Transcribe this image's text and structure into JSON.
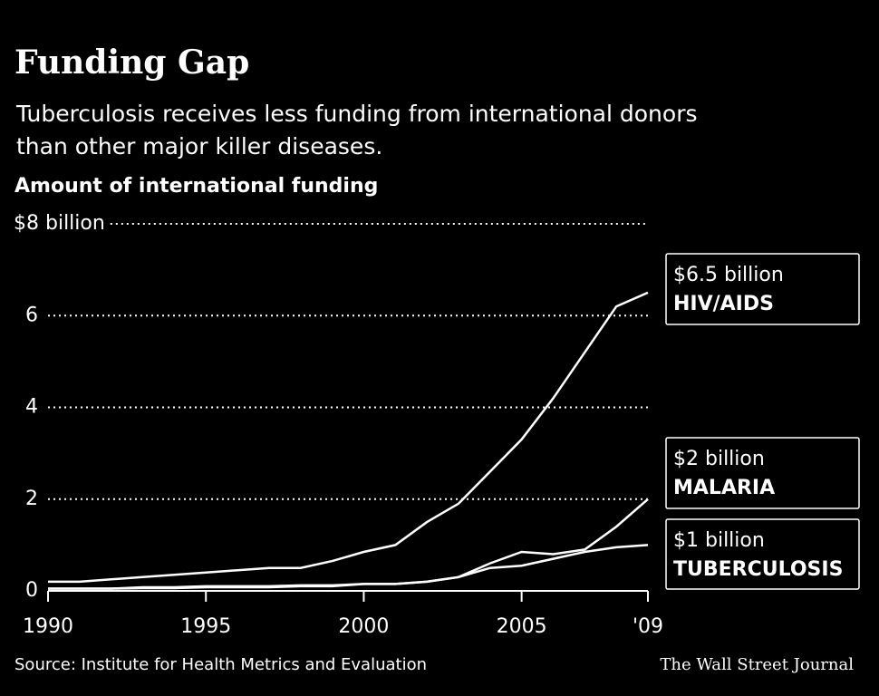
{
  "title": "Funding Gap",
  "subtitle": "Tuberculosis receives less funding from international donors than other major killer diseases.",
  "chart_data": {
    "type": "line",
    "y_label": "Amount of international funding",
    "x": [
      1990,
      1991,
      1992,
      1993,
      1994,
      1995,
      1996,
      1997,
      1998,
      1999,
      2000,
      2001,
      2002,
      2003,
      2004,
      2005,
      2006,
      2007,
      2008,
      2009
    ],
    "series": [
      {
        "name": "HIV/AIDS",
        "end_label": "$6.5 billion",
        "color": "#ffffff",
        "values": [
          0.2,
          0.2,
          0.25,
          0.3,
          0.35,
          0.4,
          0.45,
          0.5,
          0.5,
          0.65,
          0.85,
          1.0,
          1.5,
          1.9,
          2.6,
          3.3,
          4.2,
          5.2,
          6.2,
          6.5
        ]
      },
      {
        "name": "MALARIA",
        "end_label": "$2 billion",
        "color": "#ffffff",
        "values": [
          0.05,
          0.05,
          0.05,
          0.08,
          0.08,
          0.1,
          0.1,
          0.1,
          0.12,
          0.12,
          0.15,
          0.15,
          0.2,
          0.3,
          0.6,
          0.85,
          0.8,
          0.9,
          1.4,
          2.0
        ]
      },
      {
        "name": "TUBERCULOSIS",
        "end_label": "$1 billion",
        "color": "#ffffff",
        "values": [
          0.05,
          0.05,
          0.05,
          0.06,
          0.06,
          0.08,
          0.08,
          0.08,
          0.1,
          0.1,
          0.15,
          0.15,
          0.2,
          0.3,
          0.5,
          0.55,
          0.7,
          0.85,
          0.95,
          1.0
        ]
      }
    ],
    "xlim": [
      1990,
      2009
    ],
    "xticks": [
      1990,
      1995,
      2000,
      2005,
      {
        "value": 2009,
        "label": "'09"
      }
    ],
    "ylim": [
      0,
      8
    ],
    "yticks": [
      0,
      2,
      4,
      6,
      {
        "value": 8,
        "label": "$8 billion"
      }
    ],
    "grid": true
  },
  "source": "Source: Institute for Health Metrics and Evaluation",
  "credit": "The Wall Street Journal"
}
